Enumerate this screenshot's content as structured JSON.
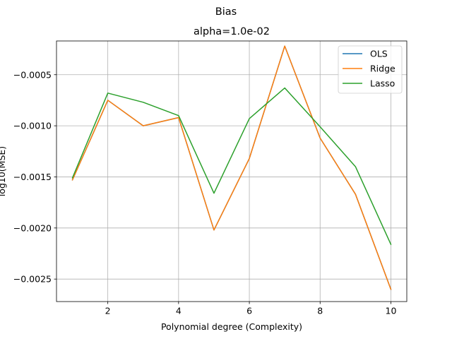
{
  "suptitle": "Bias",
  "chart_data": {
    "type": "line",
    "title": "alpha=1.0e-02",
    "xlabel": "Polynomial degree (Complexity)",
    "ylabel": "log10(MSE)",
    "x": [
      1,
      2,
      3,
      4,
      5,
      6,
      7,
      8,
      9,
      10
    ],
    "xticks": [
      2,
      4,
      6,
      8,
      10
    ],
    "xtick_labels": [
      "2",
      "4",
      "6",
      "8",
      "10"
    ],
    "yticks": [
      -0.0025,
      -0.002,
      -0.0015,
      -0.001,
      -0.0005
    ],
    "ytick_labels": [
      "−0.0025",
      "−0.0020",
      "−0.0015",
      "−0.0010",
      "−0.0005"
    ],
    "xlim": [
      0.55,
      10.45
    ],
    "ylim": [
      -0.00272,
      -0.00017
    ],
    "grid": true,
    "legend": "upper-right",
    "series": [
      {
        "name": "OLS",
        "color": "#1f77b4",
        "values": [
          -0.00153,
          -0.00075,
          -0.001,
          -0.00092,
          -0.00202,
          -0.00132,
          -0.00022,
          -0.00112,
          -0.00167,
          -0.0026
        ]
      },
      {
        "name": "Ridge",
        "color": "#ff7f0e",
        "values": [
          -0.00153,
          -0.00075,
          -0.001,
          -0.00092,
          -0.00202,
          -0.00132,
          -0.00022,
          -0.00112,
          -0.00167,
          -0.0026
        ]
      },
      {
        "name": "Lasso",
        "color": "#2ca02c",
        "values": [
          -0.00151,
          -0.00068,
          -0.00077,
          -0.0009,
          -0.00166,
          -0.00093,
          -0.00063,
          -0.00101,
          -0.0014,
          -0.00216
        ]
      }
    ]
  }
}
